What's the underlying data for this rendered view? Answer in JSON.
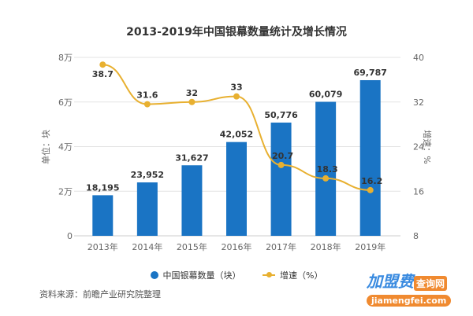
{
  "chart_data": {
    "type": "bar+line",
    "title": "2013-2019年中国银幕数量统计及增长情况",
    "categories": [
      "2013年",
      "2014年",
      "2015年",
      "2016年",
      "2017年",
      "2018年",
      "2019年"
    ],
    "series": [
      {
        "name": "中国银幕数量（块）",
        "type": "bar",
        "axis": "left",
        "values": [
          18195,
          23952,
          31627,
          42052,
          50776,
          60079,
          69787
        ],
        "labels": [
          "18,195",
          "23,952",
          "31,627",
          "42,052",
          "50,776",
          "60,079",
          "69,787"
        ],
        "color": "#1a74c4"
      },
      {
        "name": "增速（%）",
        "type": "line",
        "axis": "right",
        "values": [
          38.7,
          31.6,
          32,
          33,
          20.7,
          18.3,
          16.2
        ],
        "labels": [
          "38.7",
          "31.6",
          "32",
          "33",
          "20.7",
          "18.3",
          "16.2"
        ],
        "color": "#e8b030"
      }
    ],
    "ylabel": "单位：块",
    "ylabel_right": "增速：%",
    "ylim": [
      0,
      80000
    ],
    "ylim_right": [
      8,
      40
    ],
    "yticks": [
      "0",
      "2万",
      "4万",
      "6万",
      "8万"
    ],
    "yticks_right": [
      "8",
      "16",
      "24",
      "32",
      "40"
    ],
    "grid": true,
    "legend": "bottom"
  },
  "legend": {
    "bar": "中国银幕数量（块）",
    "line": "增速（%）"
  },
  "source": "资料来源：前瞻产业研究院整理",
  "watermark": {
    "brand": "加盟费",
    "tag": "查询网",
    "url": "jiamengfei.com"
  }
}
